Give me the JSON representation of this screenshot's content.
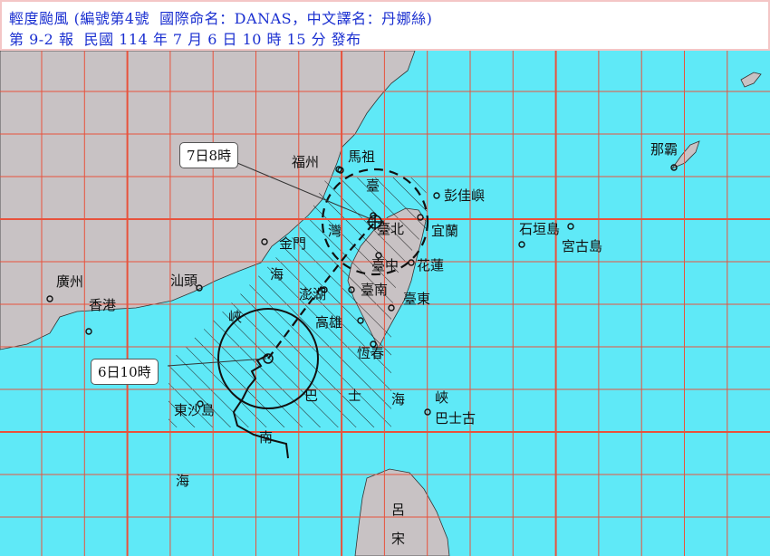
{
  "header": {
    "line1": "輕度颱風 (編號第4號  國際命名：DANAS，中文譯名：丹娜絲)",
    "line2": "第 9-2 報  民國 114 年 7 月 6 日 10 時 15 分 發布"
  },
  "colors": {
    "sea": "#5fe9f7",
    "land": "#c8c2c4",
    "grid": "#e8523c",
    "header_text": "#1a2fd0"
  },
  "forecast": {
    "current_label": "6日10時",
    "forecast_label": "7日8時"
  },
  "places": [
    {
      "name": "福州"
    },
    {
      "name": "馬祖"
    },
    {
      "name": "彭佳嶼"
    },
    {
      "name": "宜蘭"
    },
    {
      "name": "臺北"
    },
    {
      "name": "金門"
    },
    {
      "name": "臺中"
    },
    {
      "name": "花蓮"
    },
    {
      "name": "汕頭"
    },
    {
      "name": "廣州"
    },
    {
      "name": "香港"
    },
    {
      "name": "澎湖"
    },
    {
      "name": "臺南"
    },
    {
      "name": "臺東"
    },
    {
      "name": "高雄"
    },
    {
      "name": "恆春"
    },
    {
      "name": "東沙島"
    },
    {
      "name": "巴士古"
    },
    {
      "name": "石垣島"
    },
    {
      "name": "宮古島"
    },
    {
      "name": "那霸"
    }
  ],
  "sea_labels": [
    "臺",
    "灣",
    "海",
    "峽",
    "巴",
    "士",
    "海",
    "峽",
    "南",
    "海",
    "呂",
    "宋"
  ]
}
